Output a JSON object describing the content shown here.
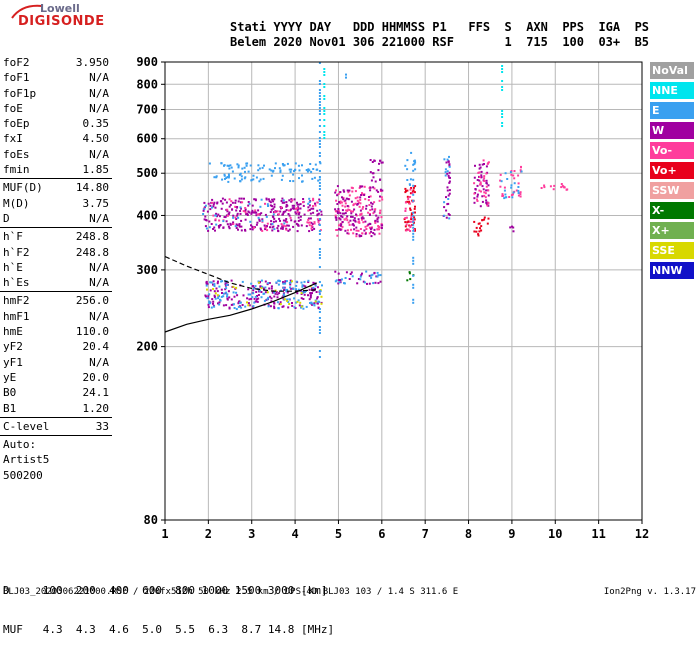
{
  "logo": {
    "line1": "Lowell",
    "line2": "DIGISONDE"
  },
  "header": {
    "labels": "Stati YYYY DAY   DDD HHMMSS P1   FFS  S  AXN  PPS  IGA  PS",
    "values": "Belem 2020 Nov01 306 221000 RSF       1  715  100  03+  B5"
  },
  "params_group1": [
    {
      "label": "foF2",
      "value": "3.950"
    },
    {
      "label": "foF1",
      "value": "N/A"
    },
    {
      "label": "foF1p",
      "value": "N/A"
    },
    {
      "label": "foE",
      "value": "N/A"
    },
    {
      "label": "foEp",
      "value": "0.35"
    },
    {
      "label": "fxI",
      "value": "4.50"
    },
    {
      "label": "foEs",
      "value": "N/A"
    },
    {
      "label": "fmin",
      "value": "1.85"
    }
  ],
  "params_group2": [
    {
      "label": "MUF(D)",
      "value": "14.80"
    },
    {
      "label": "M(D)",
      "value": "3.75"
    },
    {
      "label": "D",
      "value": "N/A"
    }
  ],
  "params_group3": [
    {
      "label": "h`F",
      "value": "248.8"
    },
    {
      "label": "h`F2",
      "value": "248.8"
    },
    {
      "label": "h`E",
      "value": "N/A"
    },
    {
      "label": "h`Es",
      "value": "N/A"
    }
  ],
  "params_group4": [
    {
      "label": "hmF2",
      "value": "256.0"
    },
    {
      "label": "hmF1",
      "value": "N/A"
    },
    {
      "label": "hmE",
      "value": "110.0"
    },
    {
      "label": "yF2",
      "value": "20.4"
    },
    {
      "label": "yF1",
      "value": "N/A"
    },
    {
      "label": "yE",
      "value": "20.0"
    },
    {
      "label": "B0",
      "value": "24.1"
    },
    {
      "label": "B1",
      "value": "1.20"
    }
  ],
  "params_group5": [
    {
      "label": "C-level",
      "value": "33"
    }
  ],
  "auto": [
    "Auto:",
    "Artist5",
    "500200"
  ],
  "legend": [
    {
      "label": "NoVal",
      "color": "#a0a0a0"
    },
    {
      "label": "NNE",
      "color": "#00e5ee"
    },
    {
      "label": "E",
      "color": "#3aa0f0"
    },
    {
      "label": "W",
      "color": "#a000a0"
    },
    {
      "label": "Vo-",
      "color": "#ff3c9c"
    },
    {
      "label": "Vo+",
      "color": "#e8001c"
    },
    {
      "label": "SSW",
      "color": "#f0a0a0"
    },
    {
      "label": "X-",
      "color": "#007800"
    },
    {
      "label": "X+",
      "color": "#70b050"
    },
    {
      "label": "SSE",
      "color": "#d8d800"
    },
    {
      "label": "NNW",
      "color": "#1010c8"
    }
  ],
  "muf_table": {
    "d_line": "D     100  200  400  600  800 1000 1500 3000 [km]",
    "muf_line": "MUF   4.3  4.3  4.6  5.0  5.5  6.3  8.7 14.8 [MHz]"
  },
  "footer": {
    "left": "BLJ03_2020306221000.RSF / 220fx512h 50 kHz 2.5 km / DPS-4D BLJ03 103 / 1.4 S 311.6 E",
    "right": "Ion2Png v. 1.3.17"
  },
  "chart_data": {
    "type": "scatter",
    "xlim": [
      1,
      12
    ],
    "ylim": [
      80,
      900
    ],
    "y_scale": "log",
    "x_ticks": [
      1,
      2,
      3,
      4,
      5,
      6,
      7,
      8,
      9,
      10,
      11,
      12
    ],
    "y_ticks": [
      80,
      200,
      300,
      400,
      500,
      600,
      700,
      800,
      900
    ],
    "grid": true,
    "legend_placement": "right",
    "echo_clusters": [
      {
        "x": [
          1.85,
          4.6
        ],
        "y": [
          370,
          440
        ],
        "color": "#a000a0",
        "density": 0.55
      },
      {
        "x": [
          1.85,
          4.6
        ],
        "y": [
          370,
          440
        ],
        "color": "#ff3c9c",
        "density": 0.12
      },
      {
        "x": [
          1.85,
          4.6
        ],
        "y": [
          370,
          440
        ],
        "color": "#3aa0f0",
        "density": 0.06
      },
      {
        "x": [
          1.9,
          4.6
        ],
        "y": [
          245,
          285
        ],
        "color": "#a000a0",
        "density": 0.45
      },
      {
        "x": [
          1.9,
          4.6
        ],
        "y": [
          245,
          285
        ],
        "color": "#3aa0f0",
        "density": 0.3
      },
      {
        "x": [
          1.9,
          4.6
        ],
        "y": [
          245,
          285
        ],
        "color": "#d8d800",
        "density": 0.06
      },
      {
        "x": [
          2.0,
          4.6
        ],
        "y": [
          480,
          530
        ],
        "color": "#3aa0f0",
        "density": 0.35
      },
      {
        "x": [
          4.9,
          6.0
        ],
        "y": [
          360,
          470
        ],
        "color": "#ff3c9c",
        "density": 0.4
      },
      {
        "x": [
          4.9,
          6.0
        ],
        "y": [
          360,
          470
        ],
        "color": "#a000a0",
        "density": 0.35
      },
      {
        "x": [
          4.9,
          6.0
        ],
        "y": [
          280,
          300
        ],
        "color": "#a000a0",
        "density": 0.3
      },
      {
        "x": [
          4.9,
          6.0
        ],
        "y": [
          280,
          300
        ],
        "color": "#3aa0f0",
        "density": 0.25
      },
      {
        "x": [
          5.7,
          6.0
        ],
        "y": [
          470,
          540
        ],
        "color": "#a000a0",
        "density": 0.4
      },
      {
        "x": [
          6.5,
          6.75
        ],
        "y": [
          370,
          470
        ],
        "color": "#e8001c",
        "density": 0.6
      },
      {
        "x": [
          6.5,
          6.75
        ],
        "y": [
          370,
          470
        ],
        "color": "#ff3c9c",
        "density": 0.3
      },
      {
        "x": [
          6.5,
          6.75
        ],
        "y": [
          285,
          300
        ],
        "color": "#007800",
        "density": 0.3
      },
      {
        "x": [
          6.5,
          6.75
        ],
        "y": [
          470,
          560
        ],
        "color": "#3aa0f0",
        "density": 0.25
      },
      {
        "x": [
          7.4,
          7.55
        ],
        "y": [
          380,
          560
        ],
        "color": "#a000a0",
        "density": 0.45
      },
      {
        "x": [
          7.4,
          7.55
        ],
        "y": [
          380,
          560
        ],
        "color": "#3aa0f0",
        "density": 0.2
      },
      {
        "x": [
          8.1,
          8.45
        ],
        "y": [
          420,
          540
        ],
        "color": "#a000a0",
        "density": 0.45
      },
      {
        "x": [
          8.1,
          8.45
        ],
        "y": [
          420,
          540
        ],
        "color": "#ff3c9c",
        "density": 0.3
      },
      {
        "x": [
          8.1,
          8.45
        ],
        "y": [
          360,
          400
        ],
        "color": "#e8001c",
        "density": 0.45
      },
      {
        "x": [
          8.7,
          9.2
        ],
        "y": [
          440,
          520
        ],
        "color": "#ff3c9c",
        "density": 0.3
      },
      {
        "x": [
          8.7,
          9.2
        ],
        "y": [
          440,
          520
        ],
        "color": "#3aa0f0",
        "density": 0.2
      },
      {
        "x": [
          8.85,
          9.05
        ],
        "y": [
          360,
          380
        ],
        "color": "#a000a0",
        "density": 0.35
      },
      {
        "x": [
          9.5,
          10.6
        ],
        "y": [
          460,
          480
        ],
        "color": "#ff3c9c",
        "density": 0.3
      }
    ],
    "vertical_streaks": [
      {
        "x": 4.55,
        "y": [
          180,
          900
        ],
        "color": "#3aa0f0"
      },
      {
        "x": 4.65,
        "y": [
          600,
          900
        ],
        "color": "#00e5ee"
      },
      {
        "x": 5.15,
        "y": [
          800,
          860
        ],
        "color": "#3aa0f0"
      },
      {
        "x": 8.75,
        "y": [
          640,
          900
        ],
        "color": "#00e5ee"
      },
      {
        "x": 6.7,
        "y": [
          250,
          560
        ],
        "color": "#3aa0f0"
      }
    ],
    "virtual_height_trace": {
      "x": [
        1.0,
        1.5,
        2.0,
        2.5,
        3.0,
        3.5,
        4.0,
        4.5
      ],
      "y": [
        216,
        225,
        231,
        236,
        244,
        254,
        266,
        280
      ],
      "style": "solid",
      "color": "#000000"
    },
    "virtual_height_trace_2": {
      "x": [
        1.0,
        1.5,
        2.0,
        2.5,
        3.0,
        3.5,
        4.0,
        4.5
      ],
      "y": [
        322,
        306,
        293,
        280,
        272,
        268,
        268,
        270
      ],
      "style": "dashed",
      "color": "#000000"
    }
  }
}
